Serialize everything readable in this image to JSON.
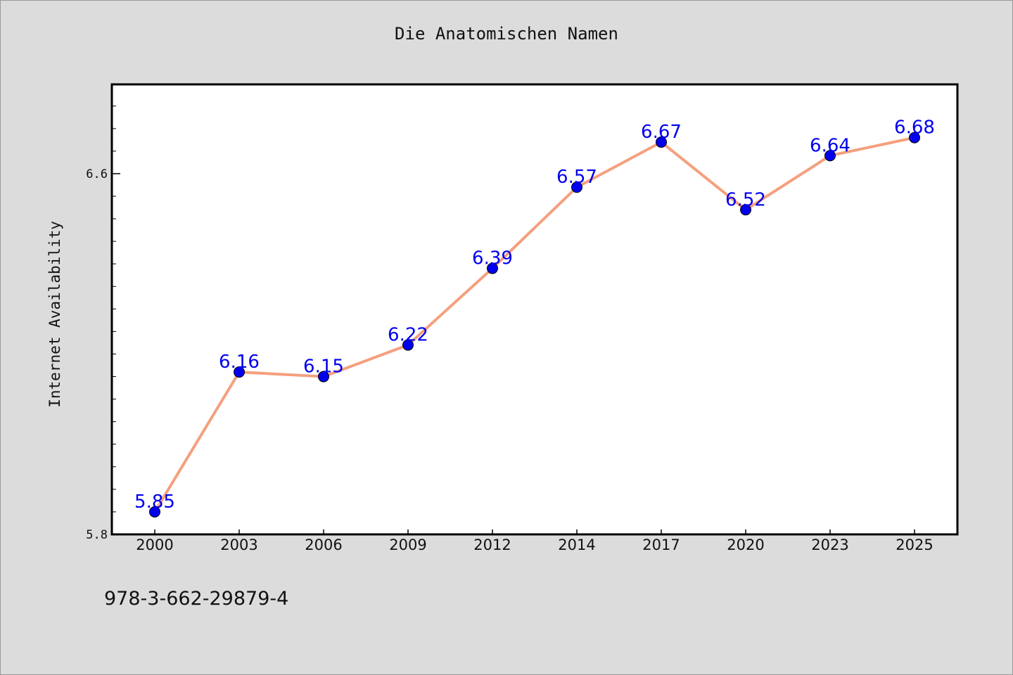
{
  "footnote": "978-3-662-29879-4",
  "chart_data": {
    "type": "line",
    "title": "Die Anatomischen Namen",
    "xlabel": "",
    "ylabel": "Internet Availability",
    "categories": [
      "2000",
      "2003",
      "2006",
      "2009",
      "2012",
      "2014",
      "2017",
      "2020",
      "2023",
      "2025"
    ],
    "series": [
      {
        "values": [
          5.85,
          6.16,
          6.15,
          6.22,
          6.39,
          6.57,
          6.67,
          6.52,
          6.64,
          6.68
        ],
        "labels": [
          "5.85",
          "6.16",
          "6.15",
          "6.22",
          "6.39",
          "6.57",
          "6.67",
          "6.52",
          "6.64",
          "6.68"
        ],
        "line_color": "#f4a07e",
        "marker_color": "#0000ee",
        "label_color": "#0000ee"
      }
    ],
    "yticks": [
      "5.8",
      "6.6"
    ],
    "ylim": [
      5.8,
      6.8
    ],
    "grid": false,
    "legend": "none"
  }
}
